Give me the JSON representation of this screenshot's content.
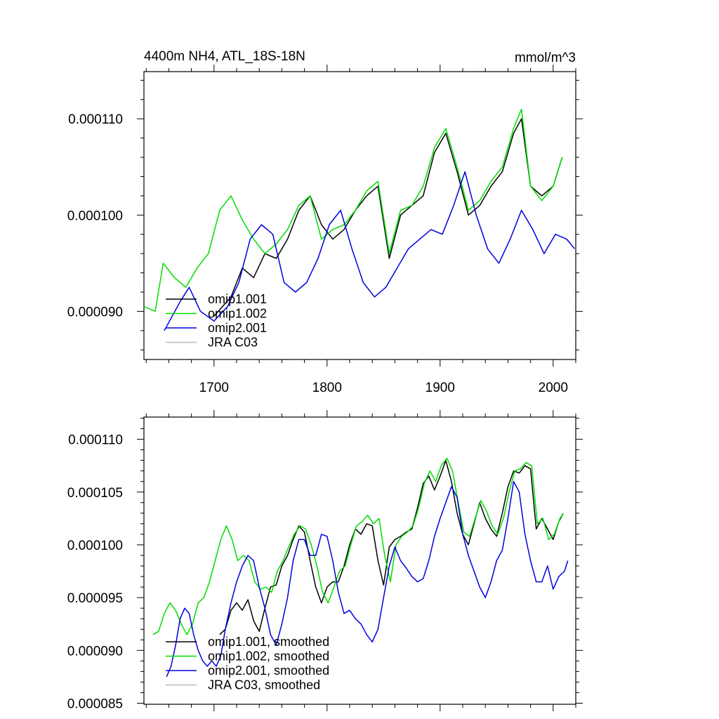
{
  "chart_data": [
    {
      "type": "line",
      "title": "4400m NH4, ATL_18S-18N",
      "units": "mmol/m^3",
      "xlim": [
        1638,
        2020
      ],
      "ylim": [
        8.5e-05,
        0.0001149
      ],
      "xticks": [
        1700,
        1800,
        1900,
        2000
      ],
      "xtick_labels": [
        "1700",
        "1800",
        "1900",
        "2000"
      ],
      "yticks": [
        9e-05,
        0.0001,
        0.00011
      ],
      "ytick_labels": [
        "0.000090",
        "0.000100",
        "0.000110"
      ],
      "legend_position": "bottom-left",
      "legend": [
        "omip1.001",
        "omip1.002",
        "omip2.001",
        "JRA C03"
      ],
      "series": [
        {
          "name": "omip1.001",
          "color": "#000000",
          "x": [
            1700,
            1715,
            1725,
            1735,
            1745,
            1755,
            1765,
            1775,
            1785,
            1795,
            1805,
            1815,
            1825,
            1835,
            1845,
            1855,
            1865,
            1875,
            1885,
            1895,
            1905,
            1915,
            1925,
            1935,
            1945,
            1955,
            1965,
            1972,
            1980,
            1990,
            2000,
            2008
          ],
          "y": [
            8.95e-05,
            9.15e-05,
            9.45e-05,
            9.35e-05,
            9.6e-05,
            9.55e-05,
            9.75e-05,
            0.0001005,
            0.000102,
            9.9e-05,
            9.75e-05,
            9.85e-05,
            0.0001005,
            0.000102,
            0.000103,
            9.55e-05,
            0.0001,
            0.000101,
            0.000102,
            0.0001065,
            0.0001085,
            0.0001045,
            0.0001,
            0.000101,
            0.000103,
            0.0001045,
            0.0001085,
            0.00011,
            0.000103,
            0.000102,
            0.000103,
            0.000106
          ]
        },
        {
          "name": "omip1.002",
          "color": "#00dd00",
          "x": [
            1638,
            1648,
            1655,
            1665,
            1675,
            1685,
            1695,
            1705,
            1715,
            1725,
            1735,
            1745,
            1755,
            1765,
            1775,
            1785,
            1795,
            1805,
            1815,
            1825,
            1835,
            1845,
            1855,
            1865,
            1875,
            1885,
            1895,
            1905,
            1915,
            1925,
            1935,
            1945,
            1955,
            1965,
            1972,
            1980,
            1990,
            2000,
            2008
          ],
          "y": [
            9.05e-05,
            9e-05,
            9.5e-05,
            9.35e-05,
            9.25e-05,
            9.45e-05,
            9.6e-05,
            0.0001005,
            0.000102,
            9.95e-05,
            9.75e-05,
            9.6e-05,
            9.7e-05,
            9.85e-05,
            0.000101,
            0.000102,
            9.75e-05,
            9.85e-05,
            9.9e-05,
            0.0001005,
            0.0001025,
            0.0001035,
            9.6e-05,
            0.0001005,
            0.000101,
            0.000103,
            0.000107,
            0.000109,
            0.000105,
            0.0001005,
            0.0001015,
            0.0001035,
            0.000105,
            0.000109,
            0.000111,
            0.000103,
            0.0001015,
            0.000103,
            0.000106
          ]
        },
        {
          "name": "omip2.001",
          "color": "#0000dd",
          "x": [
            1656,
            1663,
            1670,
            1678,
            1688,
            1700,
            1712,
            1722,
            1732,
            1742,
            1752,
            1762,
            1772,
            1782,
            1792,
            1802,
            1812,
            1822,
            1832,
            1842,
            1852,
            1862,
            1872,
            1882,
            1892,
            1902,
            1912,
            1922,
            1932,
            1942,
            1952,
            1962,
            1972,
            1982,
            1992,
            2002,
            2012,
            2019
          ],
          "y": [
            8.8e-05,
            8.95e-05,
            9.1e-05,
            9.25e-05,
            9e-05,
            8.9e-05,
            9.05e-05,
            9.3e-05,
            9.75e-05,
            9.9e-05,
            9.8e-05,
            9.3e-05,
            9.2e-05,
            9.3e-05,
            9.55e-05,
            9.9e-05,
            0.0001005,
            9.65e-05,
            9.3e-05,
            9.15e-05,
            9.25e-05,
            9.45e-05,
            9.65e-05,
            9.75e-05,
            9.85e-05,
            9.8e-05,
            0.000101,
            0.0001045,
            0.0001,
            9.65e-05,
            9.5e-05,
            9.75e-05,
            0.0001005,
            9.85e-05,
            9.6e-05,
            9.8e-05,
            9.75e-05,
            9.65e-05
          ]
        },
        {
          "name": "JRA C03",
          "color": "#bbbbbb",
          "x": [],
          "y": []
        }
      ]
    },
    {
      "type": "line",
      "title": "",
      "xlim": [
        1638,
        2020
      ],
      "ylim": [
        8.49e-05,
        0.0001121
      ],
      "xticks": [
        1700,
        1800,
        1900,
        2000
      ],
      "yticks": [
        8.5e-05,
        9e-05,
        9.5e-05,
        0.0001,
        0.000105,
        0.00011
      ],
      "ytick_labels": [
        "0.000085",
        "0.000090",
        "0.000095",
        "0.000100",
        "0.000105",
        "0.000110"
      ],
      "legend_position": "bottom-left",
      "legend": [
        "omip1.001, smoothed",
        "omip1.002, smoothed",
        "omip2.001, smoothed",
        "JRA C03, smoothed"
      ],
      "series": [
        {
          "name": "omip1.001, smoothed",
          "color": "#000000",
          "x": [
            1705,
            1710,
            1715,
            1720,
            1725,
            1730,
            1735,
            1740,
            1745,
            1750,
            1755,
            1760,
            1765,
            1770,
            1775,
            1780,
            1785,
            1790,
            1795,
            1800,
            1805,
            1810,
            1815,
            1820,
            1825,
            1830,
            1835,
            1840,
            1845,
            1850,
            1855,
            1860,
            1865,
            1870,
            1875,
            1880,
            1885,
            1890,
            1895,
            1900,
            1905,
            1910,
            1915,
            1920,
            1925,
            1930,
            1935,
            1940,
            1945,
            1950,
            1955,
            1960,
            1965,
            1970,
            1975,
            1980,
            1985,
            1990,
            1995,
            2000,
            2005,
            2009
          ],
          "y": [
            9.15e-05,
            9.2e-05,
            9.38e-05,
            9.45e-05,
            9.38e-05,
            9.48e-05,
            9.28e-05,
            9.18e-05,
            9.4e-05,
            9.6e-05,
            9.62e-05,
            9.8e-05,
            9.9e-05,
            0.0001005,
            0.0001018,
            0.0001012,
            9.85e-05,
            9.6e-05,
            9.45e-05,
            9.6e-05,
            9.65e-05,
            9.65e-05,
            9.8e-05,
            0.0001,
            0.0001015,
            0.000101,
            0.000102,
            0.0001018,
            9.85e-05,
            9.62e-05,
            9.98e-05,
            0.0001005,
            0.0001008,
            0.0001012,
            0.0001015,
            0.0001035,
            0.0001058,
            0.0001065,
            0.0001052,
            0.0001065,
            0.000108,
            0.000106,
            0.000103,
            0.000101,
            0.0001,
            0.000102,
            0.000104,
            0.0001025,
            0.0001015,
            0.0001008,
            0.000103,
            0.0001055,
            0.000107,
            0.0001068,
            0.0001075,
            0.0001072,
            0.0001015,
            0.0001025,
            0.0001015,
            0.0001005,
            0.0001022,
            0.000103
          ]
        },
        {
          "name": "omip1.002, smoothed",
          "color": "#00dd00",
          "x": [
            1646,
            1651,
            1656,
            1661,
            1666,
            1671,
            1676,
            1681,
            1686,
            1691,
            1696,
            1701,
            1706,
            1711,
            1716,
            1721,
            1726,
            1731,
            1736,
            1741,
            1746,
            1751,
            1756,
            1761,
            1766,
            1771,
            1776,
            1781,
            1786,
            1791,
            1796,
            1801,
            1806,
            1811,
            1816,
            1821,
            1826,
            1831,
            1836,
            1841,
            1846,
            1851,
            1856,
            1861,
            1866,
            1871,
            1876,
            1881,
            1886,
            1891,
            1896,
            1901,
            1906,
            1911,
            1916,
            1921,
            1926,
            1931,
            1936,
            1941,
            1946,
            1951,
            1956,
            1961,
            1966,
            1971,
            1976,
            1981,
            1986,
            1991,
            1996,
            2001,
            2006,
            2009
          ],
          "y": [
            9.15e-05,
            9.18e-05,
            9.35e-05,
            9.45e-05,
            9.38e-05,
            9.25e-05,
            9.15e-05,
            9.25e-05,
            9.45e-05,
            9.5e-05,
            9.65e-05,
            9.85e-05,
            0.0001005,
            0.0001018,
            0.0001005,
            9.85e-05,
            9.9e-05,
            9.85e-05,
            9.65e-05,
            9.58e-05,
            9.6e-05,
            9.55e-05,
            9.75e-05,
            9.85e-05,
            9.98e-05,
            0.000101,
            0.0001018,
            0.0001015,
            0.0001,
            9.8e-05,
            9.55e-05,
            9.45e-05,
            9.6e-05,
            9.75e-05,
            9.8e-05,
            0.0001,
            0.0001018,
            0.0001022,
            0.0001028,
            0.000102,
            0.0001025,
            9.9e-05,
            9.65e-05,
            0.0001,
            0.0001008,
            0.0001012,
            0.0001018,
            0.0001035,
            0.0001058,
            0.000107,
            0.000106,
            0.0001075,
            0.0001082,
            0.000107,
            0.000104,
            0.0001012,
            0.0001008,
            0.0001025,
            0.0001042,
            0.0001032,
            0.0001018,
            0.000101,
            0.0001025,
            0.000105,
            0.000107,
            0.0001072,
            0.0001078,
            0.0001075,
            0.000102,
            0.0001025,
            0.0001005,
            0.000101,
            0.0001025,
            0.000103
          ]
        },
        {
          "name": "omip2.001, smoothed",
          "color": "#0000dd",
          "x": [
            1658,
            1662,
            1666,
            1670,
            1674,
            1678,
            1682,
            1686,
            1690,
            1694,
            1698,
            1702,
            1706,
            1710,
            1715,
            1720,
            1725,
            1730,
            1735,
            1740,
            1745,
            1750,
            1755,
            1760,
            1765,
            1770,
            1775,
            1780,
            1785,
            1790,
            1795,
            1800,
            1805,
            1810,
            1815,
            1820,
            1825,
            1830,
            1835,
            1840,
            1845,
            1850,
            1855,
            1860,
            1865,
            1870,
            1875,
            1880,
            1885,
            1890,
            1895,
            1900,
            1905,
            1910,
            1915,
            1920,
            1925,
            1930,
            1935,
            1940,
            1945,
            1950,
            1955,
            1960,
            1965,
            1970,
            1975,
            1980,
            1985,
            1990,
            1995,
            2000,
            2005,
            2010,
            2013
          ],
          "y": [
            8.75e-05,
            8.85e-05,
            9.05e-05,
            9.3e-05,
            9.4e-05,
            9.35e-05,
            9.15e-05,
            9e-05,
            8.9e-05,
            8.85e-05,
            8.9e-05,
            8.85e-05,
            8.95e-05,
            9.2e-05,
            9.45e-05,
            9.65e-05,
            9.8e-05,
            9.9e-05,
            9.85e-05,
            9.6e-05,
            9.4e-05,
            9.15e-05,
            9.05e-05,
            9.25e-05,
            9.5e-05,
            9.85e-05,
            0.0001005,
            0.0001005,
            9.9e-05,
            9.9e-05,
            0.000101,
            0.0001008,
            9.85e-05,
            9.55e-05,
            9.35e-05,
            9.38e-05,
            9.3e-05,
            9.25e-05,
            9.15e-05,
            9.08e-05,
            9.2e-05,
            9.5e-05,
            9.8e-05,
            9.98e-05,
            9.85e-05,
            9.78e-05,
            9.7e-05,
            9.65e-05,
            9.68e-05,
            9.85e-05,
            0.0001008,
            0.0001025,
            0.000104,
            0.0001055,
            0.0001045,
            0.000101,
            9.9e-05,
            9.75e-05,
            9.6e-05,
            9.5e-05,
            9.65e-05,
            9.85e-05,
            9.95e-05,
            0.0001025,
            0.000106,
            0.000105,
            0.000101,
            9.85e-05,
            9.65e-05,
            9.65e-05,
            9.8e-05,
            9.58e-05,
            9.7e-05,
            9.75e-05,
            9.85e-05
          ]
        },
        {
          "name": "JRA C03, smoothed",
          "color": "#bbbbbb",
          "x": [],
          "y": []
        }
      ]
    }
  ]
}
